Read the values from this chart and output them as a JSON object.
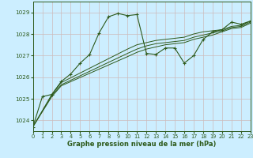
{
  "xlabel": "Graphe pression niveau de la mer (hPa)",
  "background_color": "#cceeff",
  "grid_color": "#aacccc",
  "line_color": "#2d5a1b",
  "ylim": [
    1023.5,
    1029.5
  ],
  "xlim": [
    0,
    23
  ],
  "yticks": [
    1024,
    1025,
    1026,
    1027,
    1028,
    1029
  ],
  "xticks": [
    0,
    1,
    2,
    3,
    4,
    5,
    6,
    7,
    8,
    9,
    10,
    11,
    12,
    13,
    14,
    15,
    16,
    17,
    18,
    19,
    20,
    21,
    22,
    23
  ],
  "series1_x": [
    0,
    1,
    2,
    3,
    4,
    5,
    6,
    7,
    8,
    9,
    10,
    11,
    12,
    13,
    14,
    15,
    16,
    17,
    18,
    19,
    20,
    21,
    22,
    23
  ],
  "series1_y": [
    1023.7,
    1025.1,
    1025.2,
    1025.8,
    1026.15,
    1026.65,
    1027.05,
    1028.05,
    1028.8,
    1028.95,
    1028.85,
    1028.9,
    1027.1,
    1027.05,
    1027.35,
    1027.35,
    1026.65,
    1027.0,
    1027.75,
    1028.1,
    1028.2,
    1028.55,
    1028.45,
    1028.6
  ],
  "series2_x": [
    0,
    2,
    3,
    10,
    11,
    12,
    13,
    14,
    15,
    16,
    17,
    18,
    19,
    20,
    21,
    22,
    23
  ],
  "series2_y": [
    1023.7,
    1025.2,
    1025.75,
    1027.3,
    1027.5,
    1027.6,
    1027.7,
    1027.75,
    1027.8,
    1027.85,
    1028.0,
    1028.1,
    1028.15,
    1028.2,
    1028.35,
    1028.4,
    1028.6
  ],
  "series3_x": [
    0,
    2,
    3,
    10,
    11,
    12,
    13,
    14,
    15,
    16,
    17,
    18,
    19,
    20,
    21,
    22,
    23
  ],
  "series3_y": [
    1023.7,
    1025.15,
    1025.65,
    1027.1,
    1027.3,
    1027.45,
    1027.55,
    1027.6,
    1027.65,
    1027.7,
    1027.85,
    1027.95,
    1028.05,
    1028.15,
    1028.3,
    1028.35,
    1028.55
  ],
  "series4_x": [
    0,
    2,
    3,
    10,
    11,
    12,
    13,
    14,
    15,
    16,
    17,
    18,
    19,
    20,
    21,
    22,
    23
  ],
  "series4_y": [
    1023.7,
    1025.1,
    1025.6,
    1026.95,
    1027.15,
    1027.3,
    1027.4,
    1027.5,
    1027.55,
    1027.6,
    1027.75,
    1027.85,
    1027.95,
    1028.1,
    1028.25,
    1028.3,
    1028.5
  ]
}
